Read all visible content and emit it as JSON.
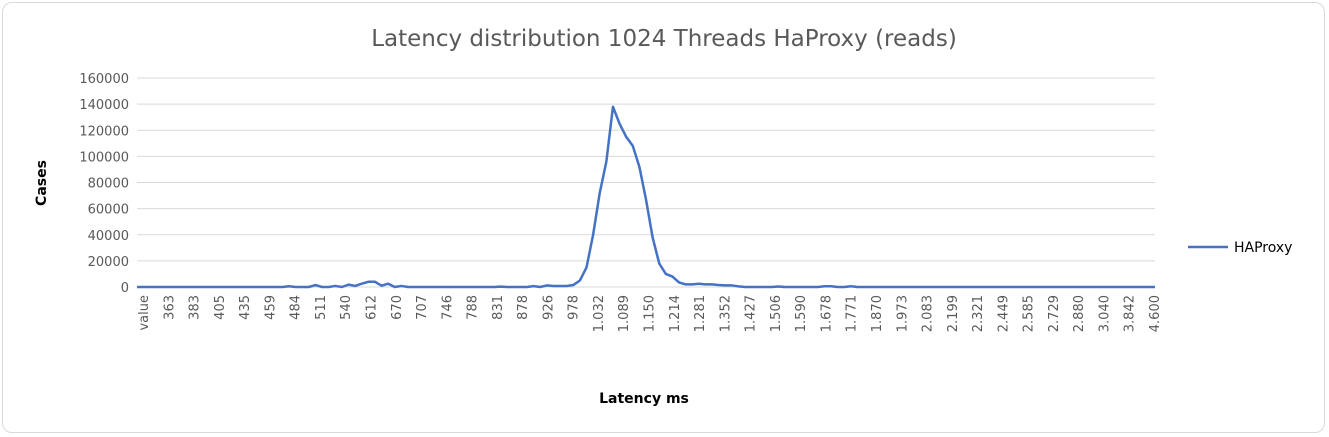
{
  "chart_data": {
    "type": "line",
    "title": "Latency distribution 1024 Threads HaProxy (reads)",
    "xlabel": "Latency ms",
    "ylabel": "Cases",
    "ylim": [
      0,
      160000
    ],
    "yticks": [
      0,
      20000,
      40000,
      60000,
      80000,
      100000,
      120000,
      140000,
      160000
    ],
    "ytick_labels": [
      "0",
      "20000",
      "40000",
      "60000",
      "80000",
      "100000",
      "120000",
      "140000",
      "160000"
    ],
    "grid": true,
    "legend_position": "right",
    "series_color": "#4472c4",
    "x_tick_labels": [
      "value",
      "363",
      "383",
      "405",
      "435",
      "459",
      "484",
      "511",
      "540",
      "612",
      "670",
      "707",
      "746",
      "788",
      "831",
      "878",
      "926",
      "978",
      "1.032",
      "1.089",
      "1.150",
      "1.214",
      "1.281",
      "1.352",
      "1.427",
      "1.506",
      "1.590",
      "1.678",
      "1.771",
      "1.870",
      "1.973",
      "2.083",
      "2.199",
      "2.321",
      "2.449",
      "2.585",
      "2.729",
      "2.880",
      "3.040",
      "3.842",
      "4.600"
    ],
    "series": [
      {
        "name": "HAProxy",
        "values": [
          0,
          0,
          0,
          0,
          0,
          0,
          0,
          0,
          0,
          0,
          0,
          0,
          0,
          0,
          0,
          0,
          0,
          0,
          0,
          0,
          0,
          0,
          0,
          600,
          0,
          0,
          0,
          1500,
          0,
          0,
          800,
          0,
          1800,
          800,
          2500,
          4000,
          4000,
          1000,
          2500,
          0,
          800,
          0,
          0,
          0,
          0,
          0,
          0,
          0,
          0,
          0,
          0,
          0,
          0,
          0,
          0,
          300,
          0,
          0,
          0,
          0,
          700,
          0,
          1200,
          800,
          800,
          800,
          1500,
          5000,
          15000,
          40000,
          72000,
          96000,
          138000,
          125000,
          115000,
          108000,
          92000,
          67000,
          38000,
          18000,
          10000,
          8000,
          3500,
          2000,
          2000,
          2500,
          2000,
          2000,
          1500,
          1200,
          1200,
          500,
          0,
          0,
          0,
          0,
          0,
          400,
          0,
          0,
          0,
          0,
          0,
          0,
          600,
          600,
          0,
          0,
          600,
          0,
          0,
          0,
          0,
          0,
          0,
          0,
          0,
          0,
          0,
          0,
          0,
          0,
          0,
          0,
          0,
          0,
          0,
          0,
          0,
          0,
          0,
          0,
          0,
          0,
          0,
          0,
          0,
          0,
          0,
          0,
          0,
          0,
          0,
          0,
          0,
          0,
          0,
          0,
          0,
          0,
          0,
          0,
          0,
          0,
          0
        ]
      }
    ]
  }
}
